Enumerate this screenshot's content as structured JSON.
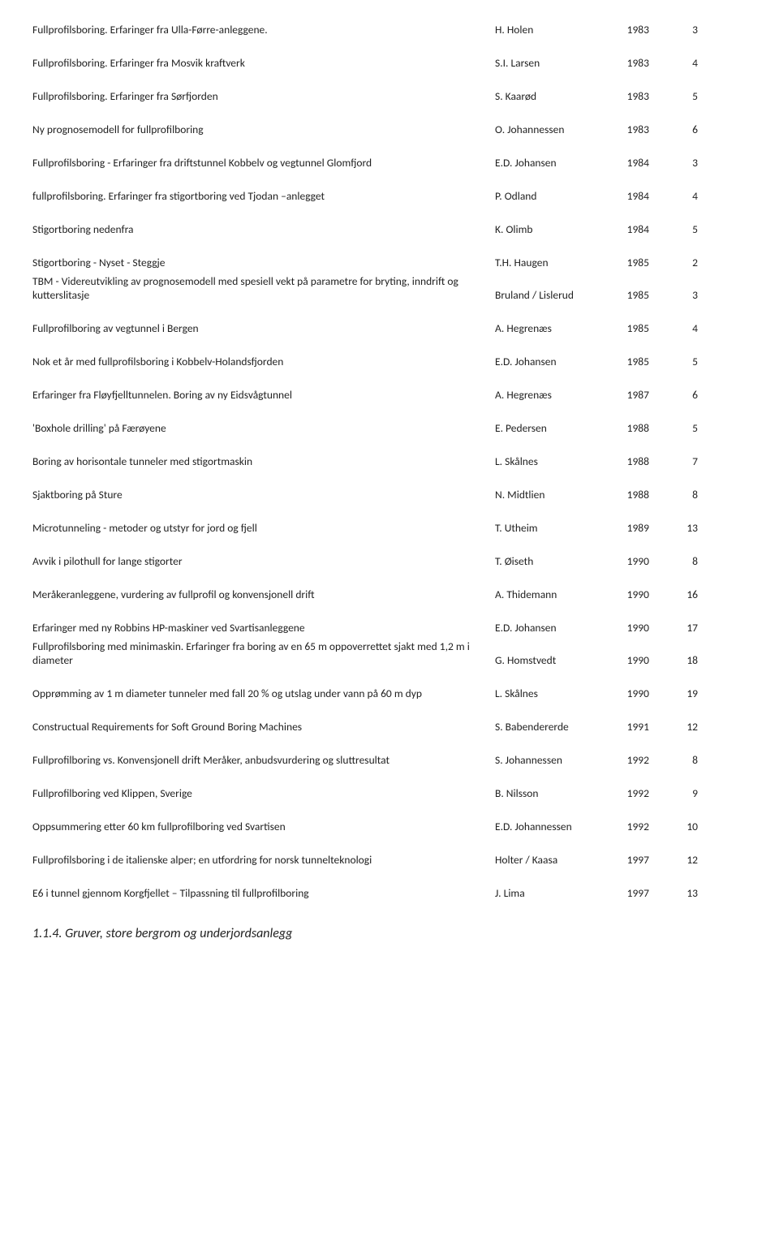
{
  "rows": [
    {
      "title": "Fullprofilsboring. Erfaringer fra Ulla-Førre-anleggene.",
      "author": "H. Holen",
      "year": "1983",
      "num": "3"
    },
    {
      "title": "Fullprofilsboring. Erfaringer fra Mosvik kraftverk",
      "author": "S.I. Larsen",
      "year": "1983",
      "num": "4"
    },
    {
      "title": "Fullprofilsboring. Erfaringer fra Sørfjorden",
      "author": "S. Kaarød",
      "year": "1983",
      "num": "5"
    },
    {
      "title": "Ny prognosemodell for fullprofilboring",
      "author": "O. Johannessen",
      "year": "1983",
      "num": "6"
    },
    {
      "title": "Fullprofilsboring - Erfaringer fra driftstunnel Kobbelv og vegtunnel Glomfjord",
      "author": "E.D. Johansen",
      "year": "1984",
      "num": "3"
    },
    {
      "title": "fullprofilsboring. Erfaringer fra stigortboring ved Tjodan –anlegget",
      "author": "P. Odland",
      "year": "1984",
      "num": "4"
    },
    {
      "title": "Stigortboring nedenfra",
      "author": "K. Olimb",
      "year": "1984",
      "num": "5"
    },
    {
      "title": "Stigortboring - Nyset - Steggje",
      "author": "T.H. Haugen",
      "year": "1985",
      "num": "2"
    },
    {
      "title": "TBM - Videreutvikling av prognosemodell med spesiell vekt på parametre for bryting, inndrift og kutterslitasje",
      "author": "Bruland / Lislerud",
      "year": "1985",
      "num": "3",
      "tight": true
    },
    {
      "title": "Fullprofilboring av vegtunnel i Bergen",
      "author": "A. Hegrenæs",
      "year": "1985",
      "num": "4"
    },
    {
      "title": "Nok et år med fullprofilsboring i Kobbelv-Holandsfjorden",
      "author": "E.D. Johansen",
      "year": "1985",
      "num": "5"
    },
    {
      "title": "Erfaringer fra Fløyfjelltunnelen. Boring av ny Eidsvågtunnel",
      "author": "A. Hegrenæs",
      "year": "1987",
      "num": "6"
    },
    {
      "title": "'Boxhole drilling' på Færøyene",
      "author": "E. Pedersen",
      "year": "1988",
      "num": "5"
    },
    {
      "title": "Boring av horisontale tunneler med stigortmaskin",
      "author": "L. Skålnes",
      "year": "1988",
      "num": "7"
    },
    {
      "title": "Sjaktboring på Sture",
      "author": "N. Midtlien",
      "year": "1988",
      "num": "8"
    },
    {
      "title": "Microtunneling - metoder og utstyr for jord og fjell",
      "author": "T. Utheim",
      "year": "1989",
      "num": "13"
    },
    {
      "title": "Avvik i pilothull for lange stigorter",
      "author": "T. Øiseth",
      "year": "1990",
      "num": "8"
    },
    {
      "title": "Meråkeranleggene, vurdering av fullprofil og konvensjonell drift",
      "author": "A. Thidemann",
      "year": "1990",
      "num": "16"
    },
    {
      "title": "Erfaringer med ny Robbins HP-maskiner ved Svartisanleggene",
      "author": "E.D. Johansen",
      "year": "1990",
      "num": "17"
    },
    {
      "title": "Fullprofilsboring med minimaskin.\n Erfaringer fra boring av en 65 m oppoverrettet sjakt med 1,2 m i diameter",
      "author": "G. Homstvedt",
      "year": "1990",
      "num": "18",
      "tight": true
    },
    {
      "title": "Opprømming av 1 m diameter tunneler med fall 20 % og utslag under vann på 60 m dyp",
      "author": "L. Skålnes",
      "year": "1990",
      "num": "19"
    },
    {
      "title": "Constructual Requirements for Soft Ground Boring Machines",
      "author": "S. Babendererde",
      "year": "1991",
      "num": "12"
    },
    {
      "title": "Fullprofilboring vs. Konvensjonell drift Meråker, anbudsvurdering og sluttresultat",
      "author": "S. Johannessen",
      "year": "1992",
      "num": "8"
    },
    {
      "title": "Fullprofilboring ved Klippen, Sverige",
      "author": "B. Nilsson",
      "year": "1992",
      "num": "9"
    },
    {
      "title": "Oppsummering etter 60 km fullprofilboring ved Svartisen",
      "author": "E.D. Johannessen",
      "year": "1992",
      "num": "10"
    },
    {
      "title": "Fullprofilsboring i de italienske alper; en utfordring for norsk tunnelteknologi",
      "author": "Holter / Kaasa",
      "year": "1997",
      "num": "12"
    },
    {
      "title": "E6 i tunnel gjennom Korgfjellet – Tilpassning til fullprofilboring",
      "author": "J. Lima",
      "year": "1997",
      "num": "13"
    }
  ],
  "section_heading": "1.1.4. Gruver, store bergrom og underjordsanlegg"
}
